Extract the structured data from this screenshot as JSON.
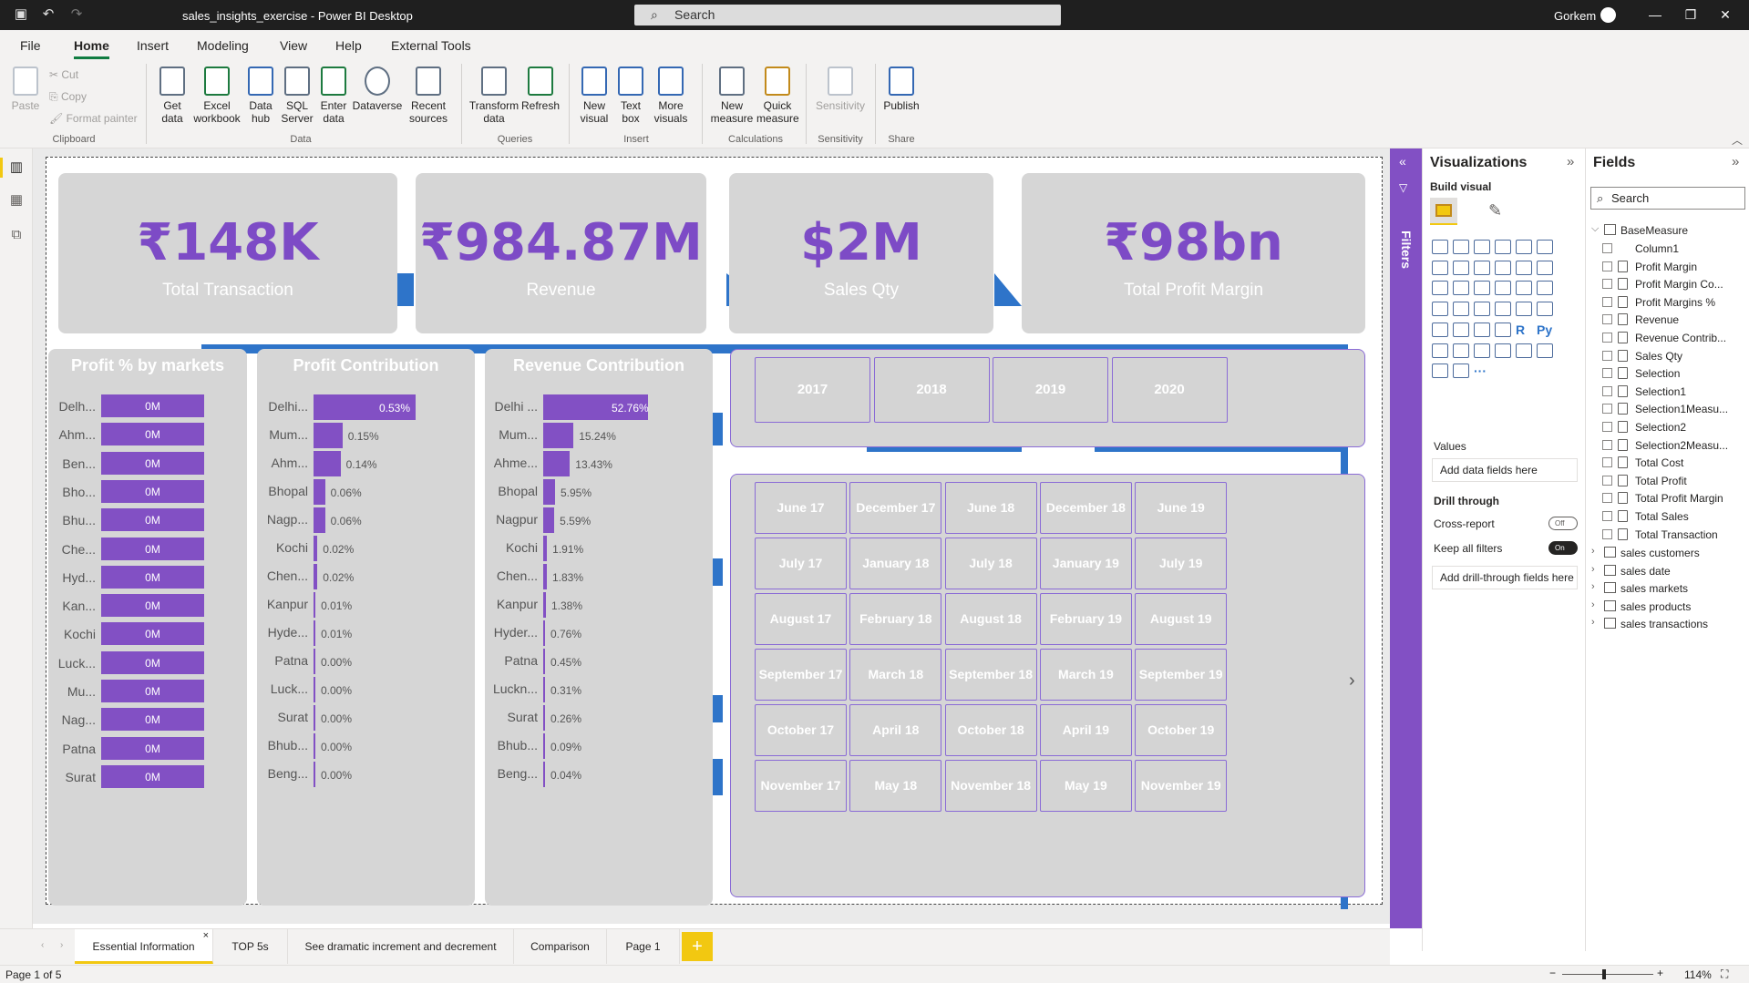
{
  "titlebar": {
    "title": "sales_insights_exercise - Power BI Desktop",
    "search_placeholder": "Search",
    "user": "Gorkem"
  },
  "menu": [
    "File",
    "Home",
    "Insert",
    "Modeling",
    "View",
    "Help",
    "External Tools"
  ],
  "ribbon": {
    "clipboard": {
      "paste": "Paste",
      "cut": "Cut",
      "copy": "Copy",
      "format_painter": "Format painter",
      "group": "Clipboard"
    },
    "data": {
      "get_data": "Get data",
      "excel": "Excel workbook",
      "hub": "Data hub",
      "sql": "SQL Server",
      "enter": "Enter data",
      "dataverse": "Dataverse",
      "recent": "Recent sources",
      "group": "Data"
    },
    "queries": {
      "transform": "Transform data",
      "refresh": "Refresh",
      "group": "Queries"
    },
    "insert": {
      "new_visual": "New visual",
      "text_box": "Text box",
      "more_visuals": "More visuals",
      "group": "Insert"
    },
    "calculations": {
      "new_measure": "New measure",
      "quick_measure": "Quick measure",
      "group": "Calculations"
    },
    "sensitivity": {
      "label": "Sensitivity",
      "group": "Sensitivity"
    },
    "share": {
      "publish": "Publish",
      "group": "Share"
    }
  },
  "kpis": [
    {
      "value": "₹148K",
      "label": "Total Transaction"
    },
    {
      "value": "₹984.87M",
      "label": "Revenue"
    },
    {
      "value": "$2M",
      "label": "Sales Qty"
    },
    {
      "value": "₹98bn",
      "label": "Total Profit Margin"
    }
  ],
  "profit_pct": {
    "title": "Profit % by markets",
    "rows": [
      {
        "cat": "Delh...",
        "val": "0M"
      },
      {
        "cat": "Ahm...",
        "val": "0M"
      },
      {
        "cat": "Ben...",
        "val": "0M"
      },
      {
        "cat": "Bho...",
        "val": "0M"
      },
      {
        "cat": "Bhu...",
        "val": "0M"
      },
      {
        "cat": "Che...",
        "val": "0M"
      },
      {
        "cat": "Hyd...",
        "val": "0M"
      },
      {
        "cat": "Kan...",
        "val": "0M"
      },
      {
        "cat": "Kochi",
        "val": "0M"
      },
      {
        "cat": "Luck...",
        "val": "0M"
      },
      {
        "cat": "Mu...",
        "val": "0M"
      },
      {
        "cat": "Nag...",
        "val": "0M"
      },
      {
        "cat": "Patna",
        "val": "0M"
      },
      {
        "cat": "Surat",
        "val": "0M"
      }
    ]
  },
  "profit_contribution": {
    "title": "Profit Contribution",
    "rows": [
      {
        "cat": "Delhi...",
        "label": "0.53%",
        "v": 0.53
      },
      {
        "cat": "Mum...",
        "label": "0.15%",
        "v": 0.15
      },
      {
        "cat": "Ahm...",
        "label": "0.14%",
        "v": 0.14
      },
      {
        "cat": "Bhopal",
        "label": "0.06%",
        "v": 0.06
      },
      {
        "cat": "Nagp...",
        "label": "0.06%",
        "v": 0.06
      },
      {
        "cat": "Kochi",
        "label": "0.02%",
        "v": 0.02
      },
      {
        "cat": "Chen...",
        "label": "0.02%",
        "v": 0.02
      },
      {
        "cat": "Kanpur",
        "label": "0.01%",
        "v": 0.01
      },
      {
        "cat": "Hyde...",
        "label": "0.01%",
        "v": 0.01
      },
      {
        "cat": "Patna",
        "label": "0.00%",
        "v": 0.0
      },
      {
        "cat": "Luck...",
        "label": "0.00%",
        "v": 0.0
      },
      {
        "cat": "Surat",
        "label": "0.00%",
        "v": 0.0
      },
      {
        "cat": "Bhub...",
        "label": "0.00%",
        "v": 0.0
      },
      {
        "cat": "Beng...",
        "label": "0.00%",
        "v": 0.0
      }
    ]
  },
  "revenue_contribution": {
    "title": "Revenue Contribution",
    "rows": [
      {
        "cat": "Delhi ...",
        "label": "52.76%",
        "v": 52.76
      },
      {
        "cat": "Mum...",
        "label": "15.24%",
        "v": 15.24
      },
      {
        "cat": "Ahme...",
        "label": "13.43%",
        "v": 13.43
      },
      {
        "cat": "Bhopal",
        "label": "5.95%",
        "v": 5.95
      },
      {
        "cat": "Nagpur",
        "label": "5.59%",
        "v": 5.59
      },
      {
        "cat": "Kochi",
        "label": "1.91%",
        "v": 1.91
      },
      {
        "cat": "Chen...",
        "label": "1.83%",
        "v": 1.83
      },
      {
        "cat": "Kanpur",
        "label": "1.38%",
        "v": 1.38
      },
      {
        "cat": "Hyder...",
        "label": "0.76%",
        "v": 0.76
      },
      {
        "cat": "Patna",
        "label": "0.45%",
        "v": 0.45
      },
      {
        "cat": "Luckn...",
        "label": "0.31%",
        "v": 0.31
      },
      {
        "cat": "Surat",
        "label": "0.26%",
        "v": 0.26
      },
      {
        "cat": "Bhub...",
        "label": "0.09%",
        "v": 0.09
      },
      {
        "cat": "Beng...",
        "label": "0.04%",
        "v": 0.04
      }
    ]
  },
  "years": [
    "2017",
    "2018",
    "2019",
    "2020"
  ],
  "months": [
    [
      "June 17",
      "December 17",
      "June 18",
      "December 18",
      "June 19"
    ],
    [
      "July 17",
      "January 18",
      "July 18",
      "January 19",
      "July 19"
    ],
    [
      "August 17",
      "February 18",
      "August 18",
      "February 19",
      "August 19"
    ],
    [
      "September 17",
      "March 18",
      "September 18",
      "March 19",
      "September 19"
    ],
    [
      "October 17",
      "April 18",
      "October 18",
      "April 19",
      "October 19"
    ],
    [
      "November 17",
      "May 18",
      "November 18",
      "May 19",
      "November 19"
    ]
  ],
  "filters_label": "Filters",
  "visualizations": {
    "title": "Visualizations",
    "build_visual": "Build visual",
    "values": "Values",
    "add_data": "Add data fields here",
    "drill_through": "Drill through",
    "cross_report": "Cross-report",
    "cross_state": "Off",
    "keep_filters": "Keep all filters",
    "keep_state": "On",
    "add_drill": "Add drill-through fields here"
  },
  "fields": {
    "title": "Fields",
    "search_placeholder": "Search",
    "base_table": "BaseMeasure",
    "base_fields": [
      "Column1",
      "Profit Margin",
      "Profit Margin Co...",
      "Profit Margins %",
      "Revenue",
      "Revenue Contrib...",
      "Sales Qty",
      "Selection",
      "Selection1",
      "Selection1Measu...",
      "Selection2",
      "Selection2Measu...",
      "Total Cost",
      "Total Profit",
      "Total Profit Margin",
      "Total Sales",
      "Total Transaction"
    ],
    "tables": [
      "sales customers",
      "sales date",
      "sales markets",
      "sales products",
      "sales transactions"
    ]
  },
  "tabs": [
    "Essential Information",
    "TOP 5s",
    "See dramatic increment and decrement",
    "Comparison",
    "Page 1"
  ],
  "status": {
    "page": "Page 1 of 5",
    "zoom": "114%"
  },
  "colors": {
    "accent": "#8250c4",
    "card": "#d6d6d6",
    "strip": "#2e74c9",
    "pbi_yellow": "#f2c811"
  }
}
